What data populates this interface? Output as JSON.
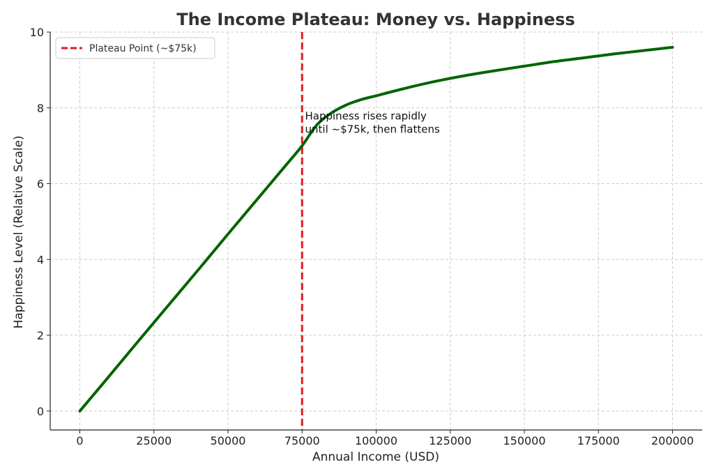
{
  "chart_data": {
    "type": "line",
    "title": "The Income Plateau: Money vs. Happiness",
    "xlabel": "Annual Income (USD)",
    "ylabel": "Happiness Level (Relative Scale)",
    "xlim": [
      -10000,
      210000
    ],
    "ylim": [
      -0.5,
      10
    ],
    "xticks": [
      0,
      25000,
      50000,
      75000,
      100000,
      125000,
      150000,
      175000,
      200000
    ],
    "xtick_labels": [
      "0",
      "25000",
      "50000",
      "75000",
      "100000",
      "125000",
      "150000",
      "175000",
      "200000"
    ],
    "yticks": [
      0,
      2,
      4,
      6,
      8,
      10
    ],
    "ytick_labels": [
      "0",
      "2",
      "4",
      "6",
      "8",
      "10"
    ],
    "grid": true,
    "series": [
      {
        "color": "#006400",
        "x": [
          0,
          10000,
          20000,
          30000,
          40000,
          50000,
          60000,
          70000,
          75000,
          80000,
          85000,
          90000,
          95000,
          100000,
          110000,
          120000,
          130000,
          140000,
          150000,
          160000,
          170000,
          180000,
          190000,
          200000
        ],
        "y": [
          0,
          0.93,
          1.87,
          2.8,
          3.73,
          4.67,
          5.6,
          6.53,
          7.0,
          7.55,
          7.87,
          8.08,
          8.22,
          8.32,
          8.52,
          8.7,
          8.85,
          8.98,
          9.1,
          9.22,
          9.32,
          9.42,
          9.51,
          9.6
        ]
      }
    ],
    "vline": {
      "x": 75000,
      "color": "#e41a1c",
      "label": "Plateau Point (~$75k)"
    },
    "annotation": {
      "x": 76000,
      "y": 7.8,
      "lines": [
        "Happiness rises rapidly",
        "until ~$75k, then flattens"
      ]
    },
    "legend": {
      "position": "top-left",
      "entries": [
        "Plateau Point (~$75k)"
      ]
    }
  }
}
